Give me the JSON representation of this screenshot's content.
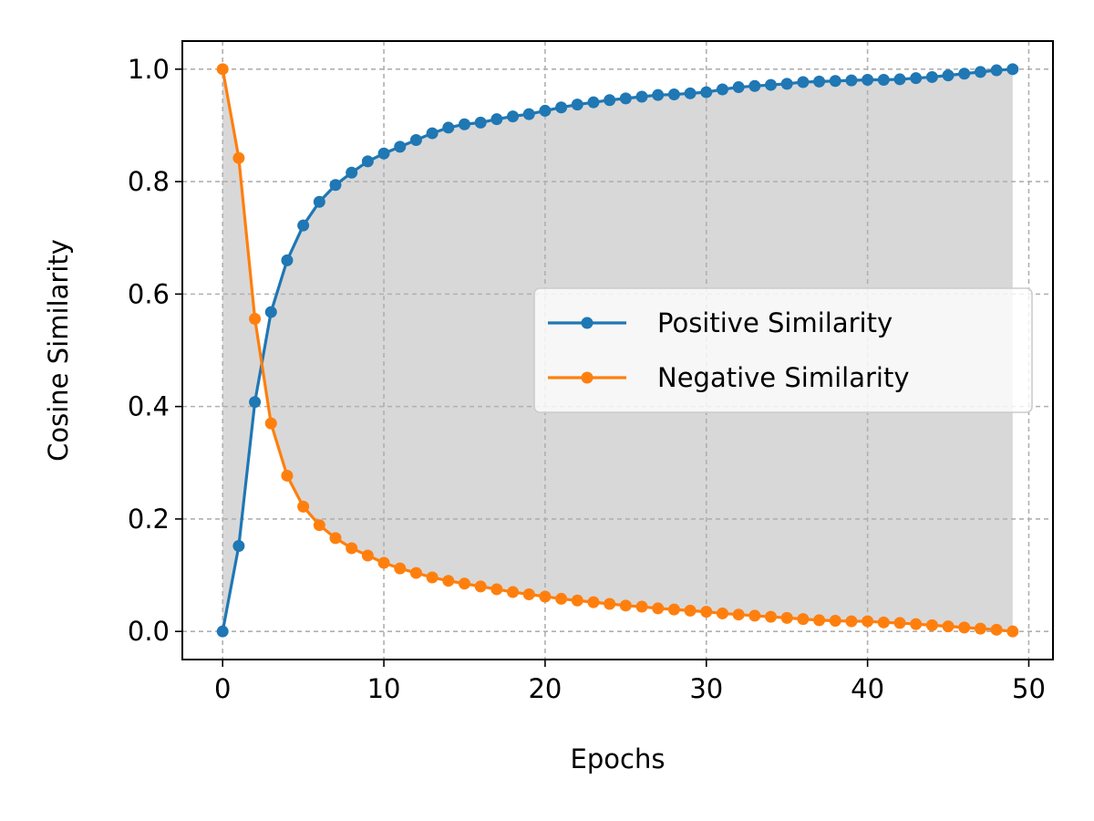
{
  "chart_data": {
    "type": "line",
    "title": "",
    "xlabel": "Epochs",
    "ylabel": "Cosine Similarity",
    "xlim": [
      -2.5,
      51.5
    ],
    "ylim": [
      -0.05,
      1.05
    ],
    "xticks": [
      0,
      10,
      20,
      30,
      40,
      50
    ],
    "yticks": [
      0.0,
      0.2,
      0.4,
      0.6,
      0.8,
      1.0
    ],
    "xtick_labels": [
      "0",
      "10",
      "20",
      "30",
      "40",
      "50"
    ],
    "ytick_labels": [
      "0.0",
      "0.2",
      "0.4",
      "0.6",
      "0.8",
      "1.0"
    ],
    "grid": true,
    "legend_position": "center-right",
    "fill_between": {
      "color": "#d8d8d8"
    },
    "x": [
      0,
      1,
      2,
      3,
      4,
      5,
      6,
      7,
      8,
      9,
      10,
      11,
      12,
      13,
      14,
      15,
      16,
      17,
      18,
      19,
      20,
      21,
      22,
      23,
      24,
      25,
      26,
      27,
      28,
      29,
      30,
      31,
      32,
      33,
      34,
      35,
      36,
      37,
      38,
      39,
      40,
      41,
      42,
      43,
      44,
      45,
      46,
      47,
      48,
      49
    ],
    "series": [
      {
        "name": "Positive Similarity",
        "color": "#1f77b4",
        "values": [
          0.0,
          0.152,
          0.408,
          0.568,
          0.66,
          0.722,
          0.764,
          0.794,
          0.816,
          0.836,
          0.85,
          0.862,
          0.874,
          0.886,
          0.896,
          0.902,
          0.905,
          0.911,
          0.916,
          0.92,
          0.926,
          0.932,
          0.937,
          0.941,
          0.945,
          0.948,
          0.951,
          0.954,
          0.955,
          0.957,
          0.959,
          0.964,
          0.968,
          0.97,
          0.972,
          0.974,
          0.977,
          0.978,
          0.979,
          0.98,
          0.981,
          0.981,
          0.982,
          0.984,
          0.986,
          0.989,
          0.992,
          0.995,
          0.998,
          1.0
        ]
      },
      {
        "name": "Negative Similarity",
        "color": "#ff7f0e",
        "values": [
          1.0,
          0.842,
          0.556,
          0.37,
          0.277,
          0.222,
          0.189,
          0.166,
          0.148,
          0.135,
          0.122,
          0.112,
          0.104,
          0.096,
          0.09,
          0.085,
          0.08,
          0.075,
          0.07,
          0.066,
          0.062,
          0.058,
          0.055,
          0.052,
          0.049,
          0.046,
          0.044,
          0.041,
          0.039,
          0.037,
          0.035,
          0.032,
          0.03,
          0.028,
          0.026,
          0.024,
          0.022,
          0.02,
          0.019,
          0.018,
          0.018,
          0.016,
          0.015,
          0.013,
          0.011,
          0.009,
          0.007,
          0.005,
          0.003,
          0.0
        ]
      }
    ]
  }
}
